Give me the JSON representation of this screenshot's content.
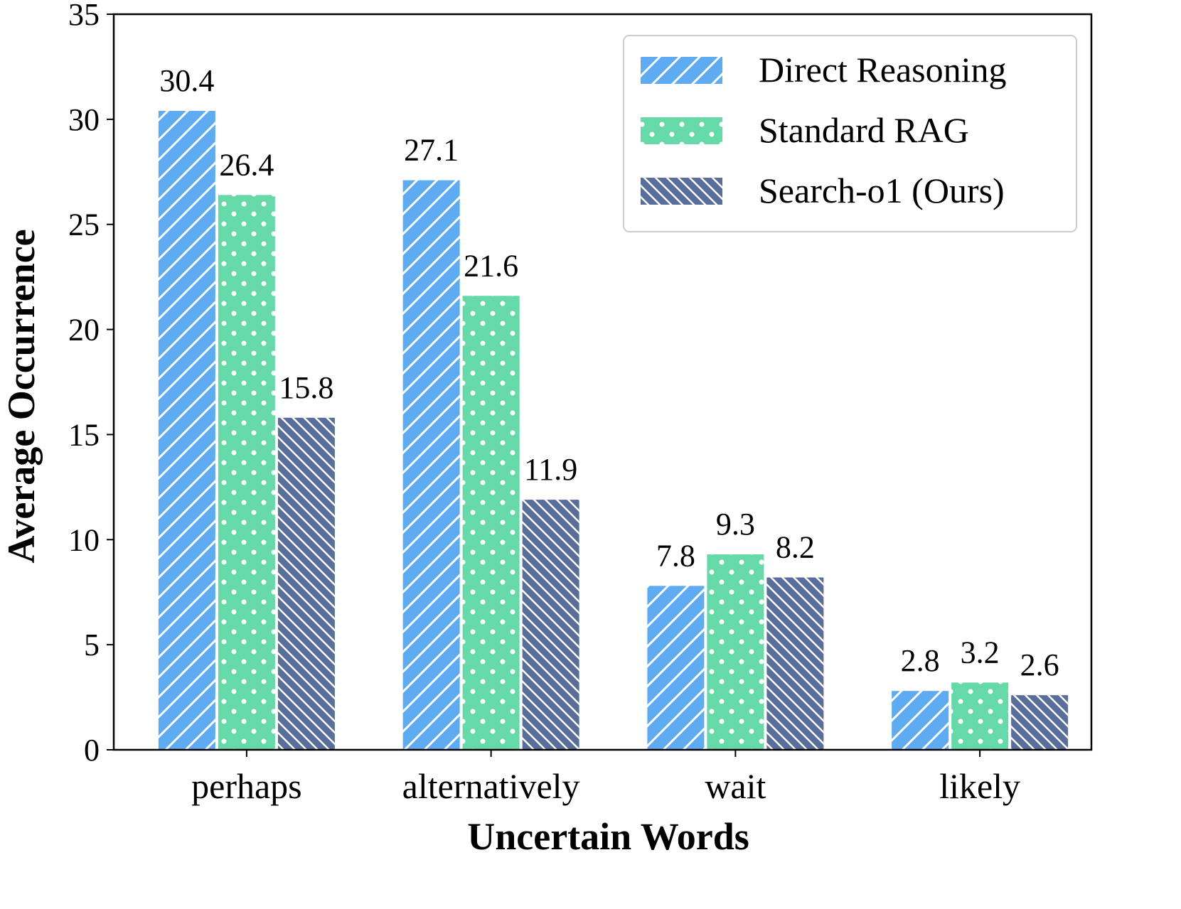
{
  "chart_data": {
    "type": "bar",
    "title": "",
    "xlabel": "Uncertain Words",
    "ylabel": "Average Occurrence",
    "categories": [
      "perhaps",
      "alternatively",
      "wait",
      "likely"
    ],
    "ylim": [
      0,
      35
    ],
    "yticks": [
      0,
      5,
      10,
      15,
      20,
      25,
      30,
      35
    ],
    "grid": false,
    "legend_position": "top-right",
    "series": [
      {
        "name": "Direct Reasoning",
        "values": [
          30.4,
          27.1,
          7.8,
          2.8
        ],
        "labels": [
          "30.4",
          "27.1",
          "7.8",
          "2.8"
        ],
        "color": "#5eabf1",
        "pattern": "diagonal-hatch"
      },
      {
        "name": "Standard RAG",
        "values": [
          26.4,
          21.6,
          9.3,
          3.2
        ],
        "labels": [
          "26.4",
          "21.6",
          "9.3",
          "3.2"
        ],
        "color": "#66d9a9",
        "pattern": "dots"
      },
      {
        "name": "Search-o1 (Ours)",
        "values": [
          15.8,
          11.9,
          8.2,
          2.6
        ],
        "labels": [
          "15.8",
          "11.9",
          "8.2",
          "2.6"
        ],
        "color": "#5a6e9c",
        "pattern": "backslash-hatch"
      }
    ]
  }
}
